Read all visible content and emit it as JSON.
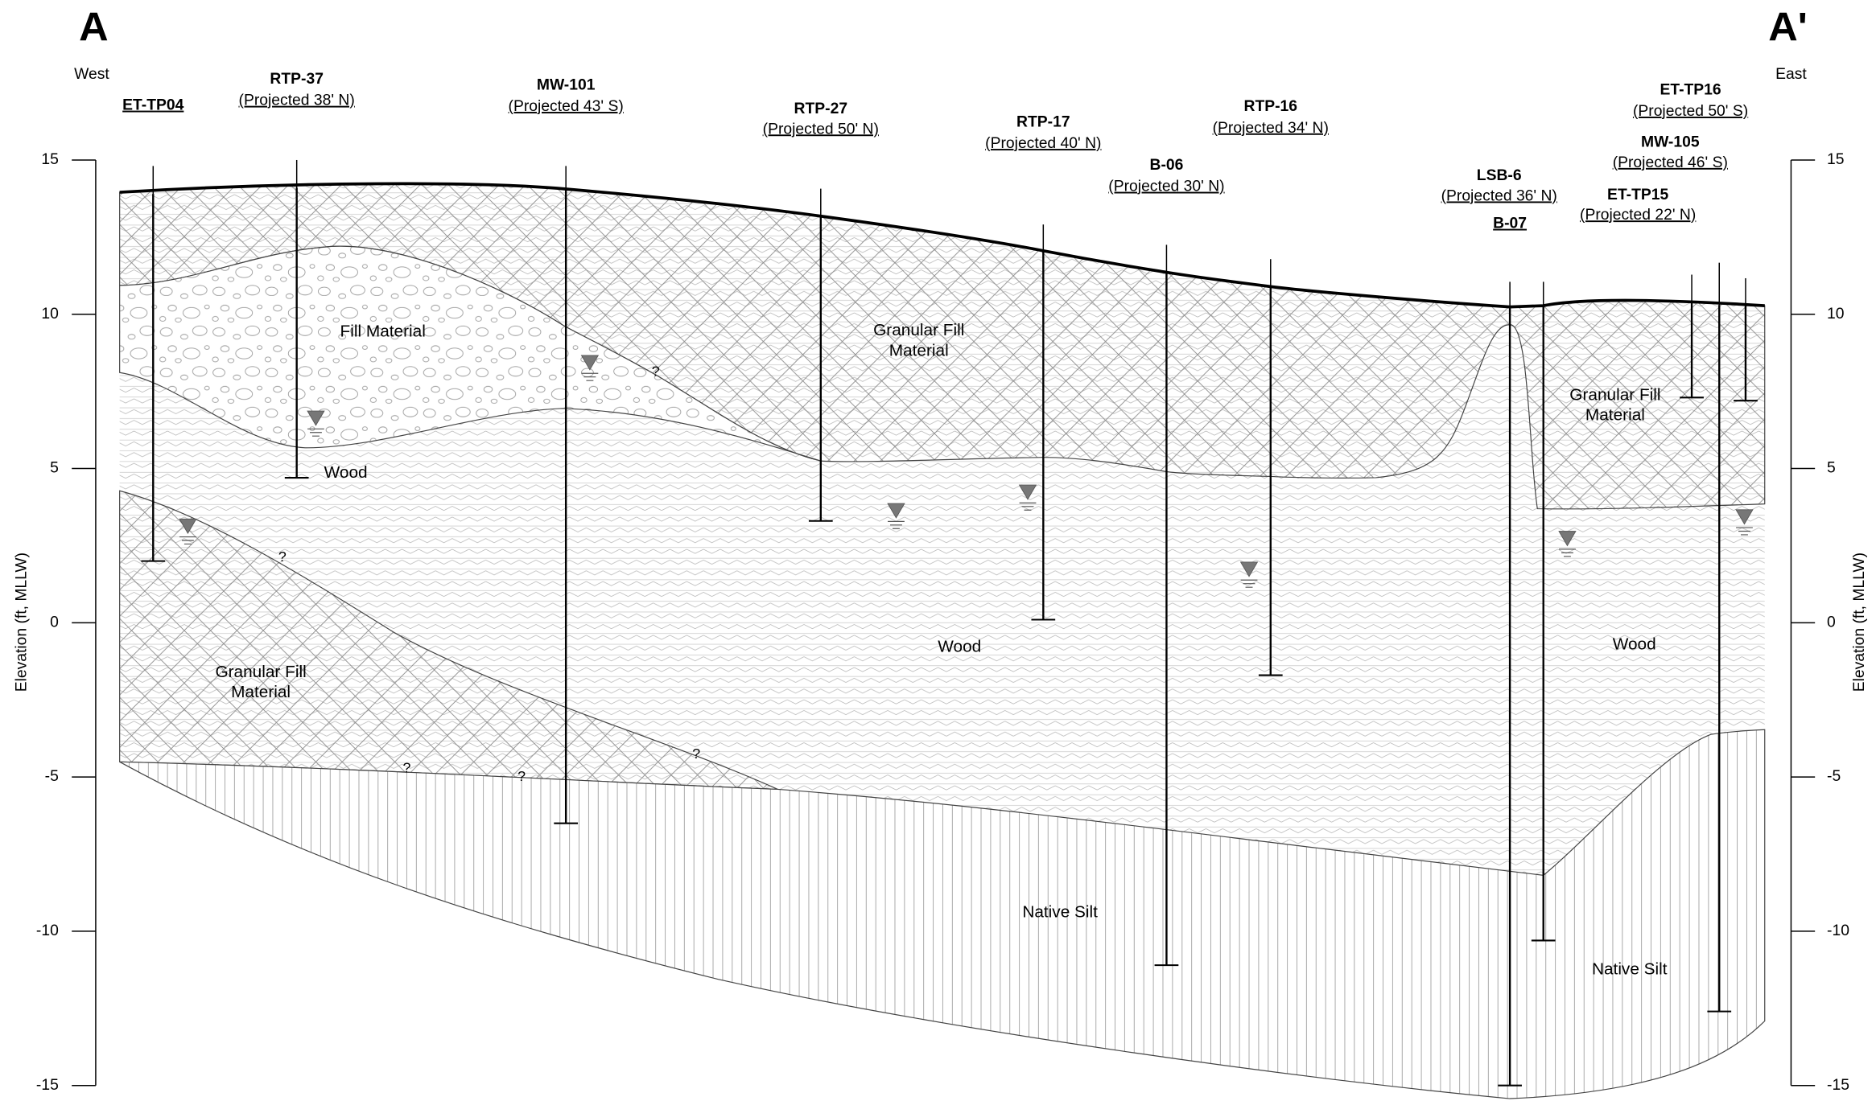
{
  "header": {
    "section_start": "A",
    "section_end": "A'",
    "west": "West",
    "east": "East"
  },
  "axis": {
    "label": "Elevation (ft, MLLW)",
    "ylim": [
      -15,
      15
    ],
    "ticks": [
      15,
      10,
      5,
      0,
      -5,
      -10,
      -15
    ]
  },
  "borings": [
    {
      "name": "ET-TP04",
      "top": 13.9,
      "bottom": 2.0,
      "water": 2.9
    },
    {
      "name": "RTP-37",
      "projection": "(Projected 38' N)",
      "top": 14.1,
      "bottom": 4.7,
      "water": 6.4
    },
    {
      "name": "MW-101",
      "projection": "(Projected 43' S)",
      "top": 14.1,
      "bottom": -6.5,
      "water": 8.2
    },
    {
      "name": "RTP-27",
      "projection": "(Projected 50' N)",
      "top": 13.2,
      "bottom": 3.3,
      "water": 3.4
    },
    {
      "name": "RTP-17",
      "projection": "(Projected 40' N)",
      "top": 12.1,
      "bottom": 0.1,
      "water": 4.0
    },
    {
      "name": "B-06",
      "projection": "(Projected 30' N)",
      "top": 11.4,
      "bottom": -11.1
    },
    {
      "name": "RTP-16",
      "projection": "(Projected 34' N)",
      "top": 10.9,
      "bottom": -1.7,
      "water": 1.5
    },
    {
      "name": "B-07",
      "top": 10.2,
      "bottom": -15.0
    },
    {
      "name": "LSB-6",
      "projection": "(Projected 36' N)",
      "top": 10.3,
      "bottom": -10.3,
      "water": 2.5
    },
    {
      "name": "ET-TP15",
      "projection": "(Projected 22' N)",
      "top": 10.4,
      "bottom": 7.3
    },
    {
      "name": "MW-105",
      "projection": "(Projected 46' S)",
      "top": 10.3,
      "bottom": -12.6
    },
    {
      "name": "ET-TP16",
      "projection": "(Projected 50' S)",
      "top": 10.3,
      "bottom": 7.2,
      "water": 3.2
    }
  ],
  "layers": [
    {
      "lines": [
        "Fill Material"
      ]
    },
    {
      "lines": [
        "Wood"
      ]
    },
    {
      "lines": [
        "Granular Fill",
        "Material"
      ]
    },
    {
      "lines": [
        "Granular Fill",
        "Material"
      ]
    },
    {
      "lines": [
        "Wood"
      ]
    },
    {
      "lines": [
        "Native Silt"
      ]
    },
    {
      "lines": [
        "Granular Fill",
        "Material"
      ]
    },
    {
      "lines": [
        "Wood"
      ]
    },
    {
      "lines": [
        "Native Silt"
      ]
    }
  ],
  "uncertain": [
    "?",
    "?",
    "?",
    "?",
    "?"
  ]
}
